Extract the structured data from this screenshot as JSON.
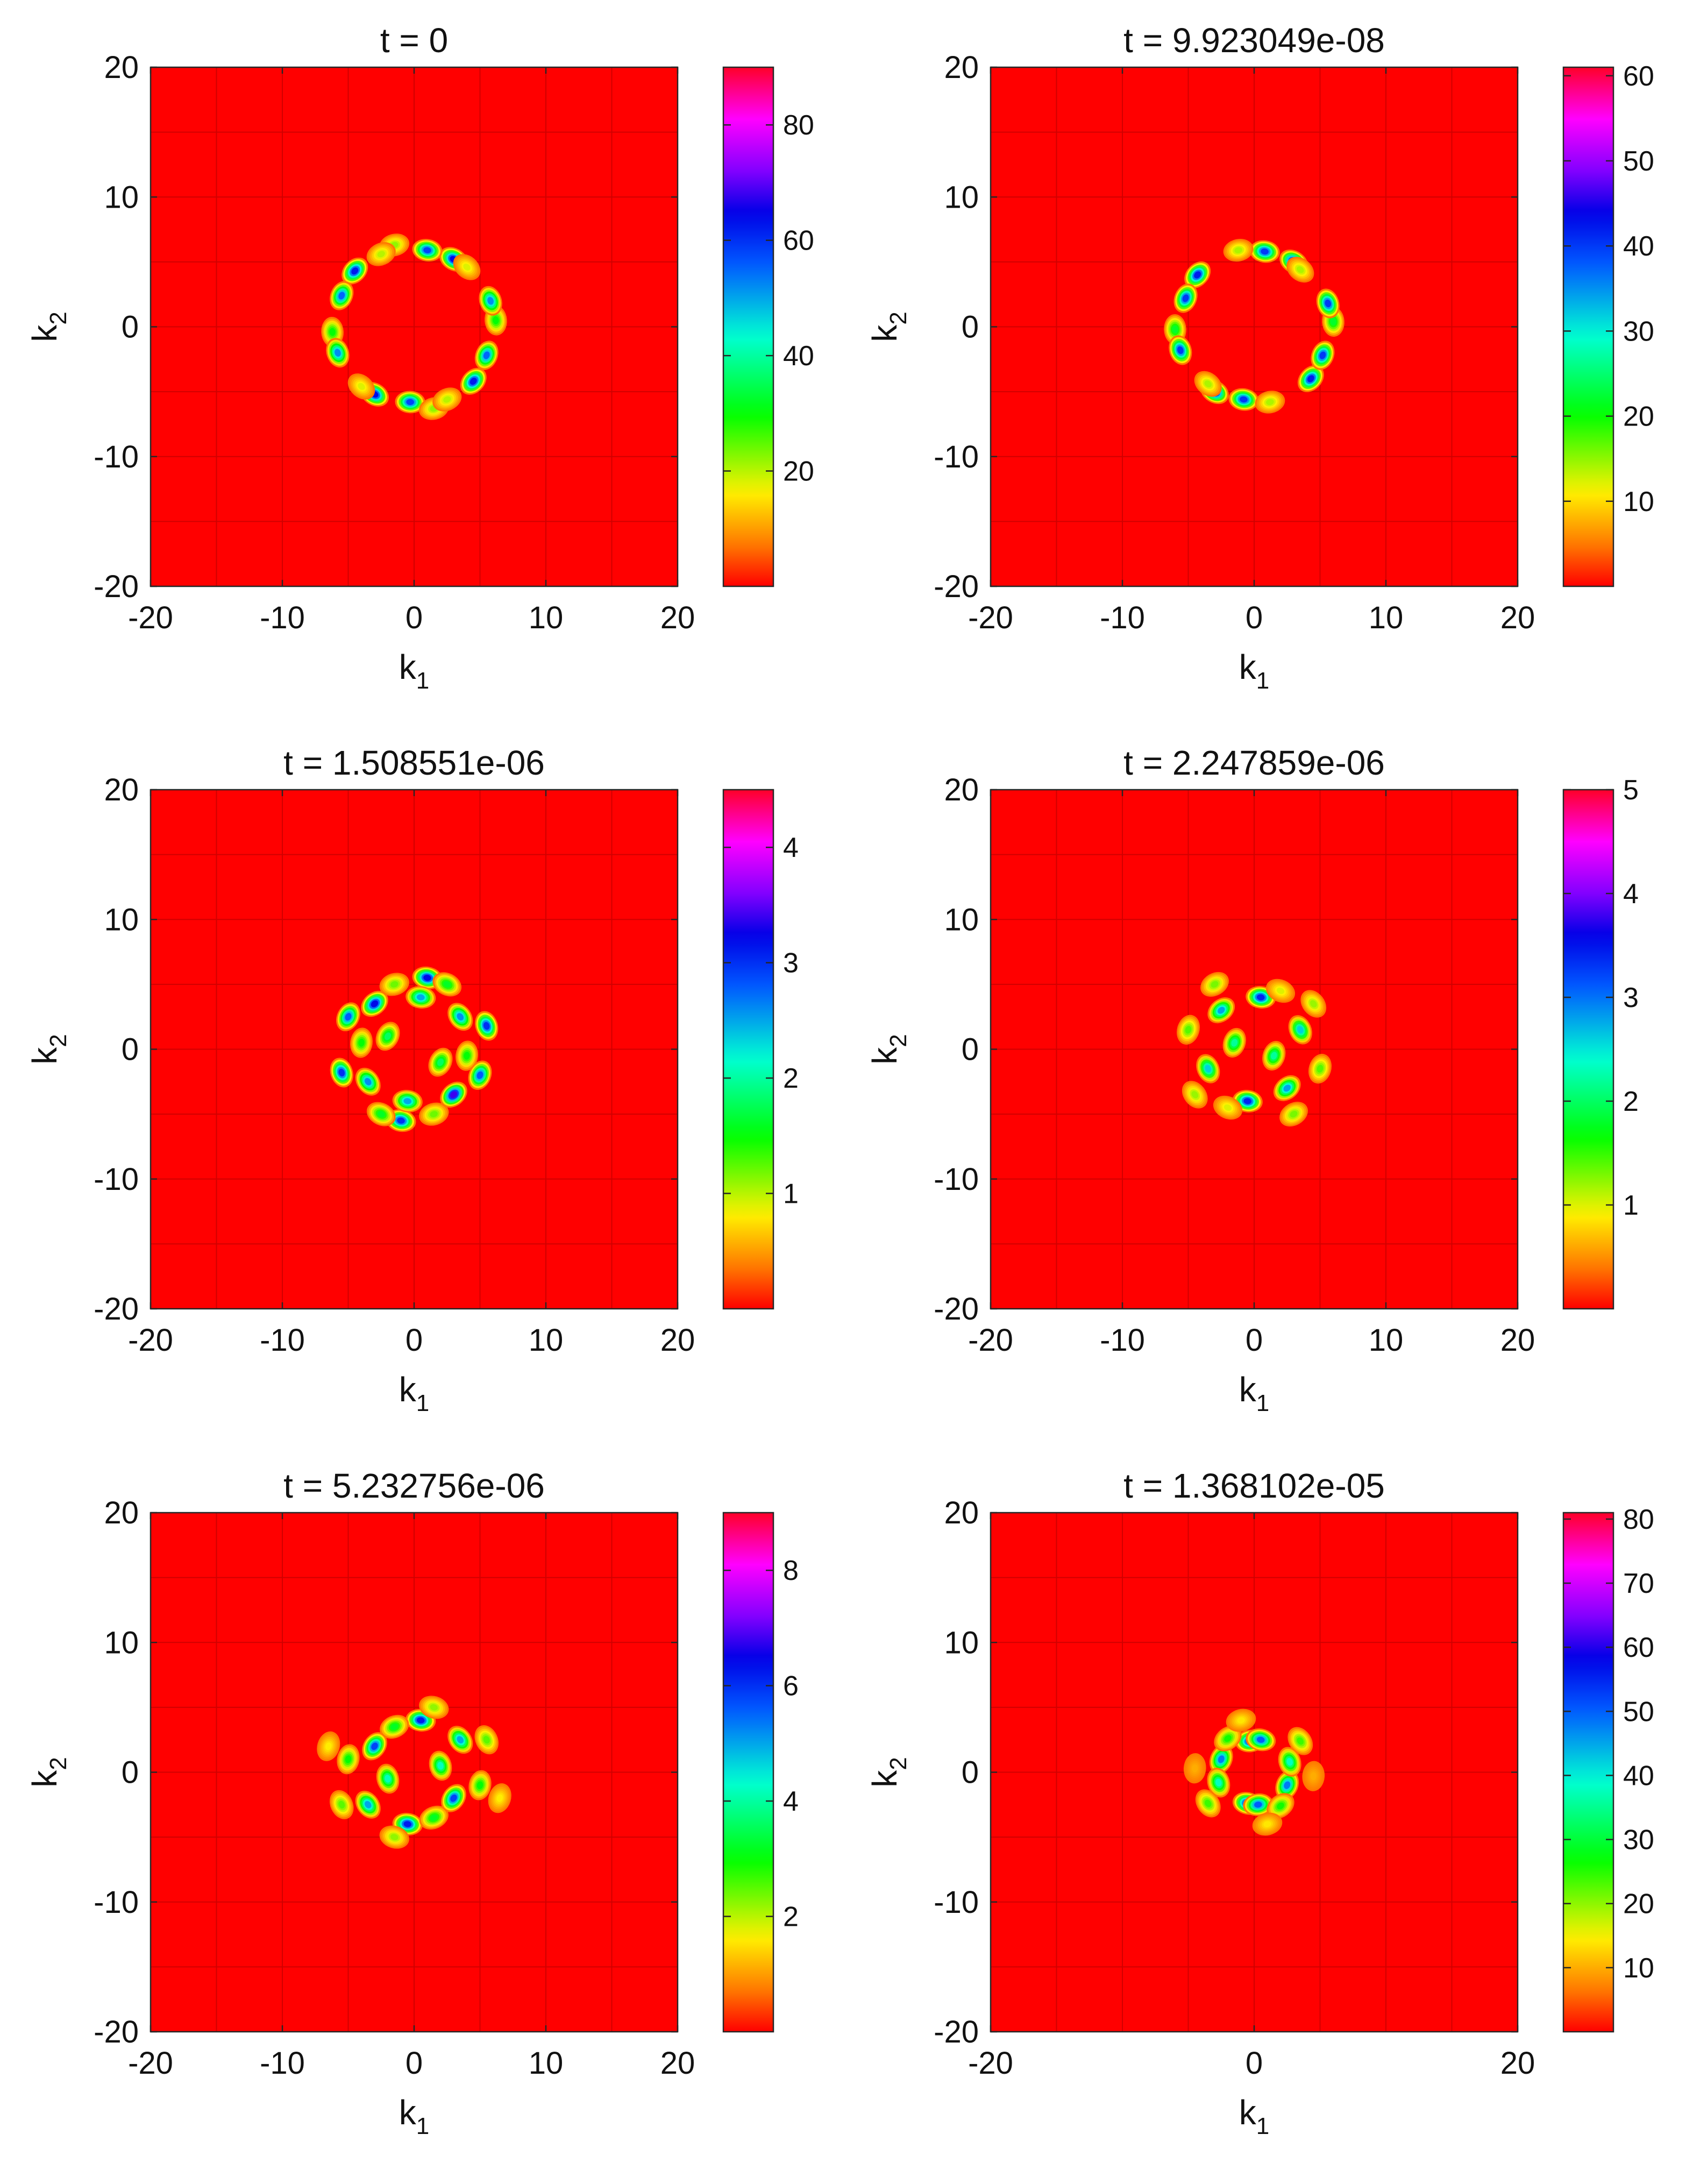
{
  "chart_data": [
    {
      "type": "heatmap",
      "title": "t = 0",
      "xlabel": "k",
      "xlabel_sub": "1",
      "ylabel": "k",
      "ylabel_sub": "2",
      "xlim": [
        -20,
        20
      ],
      "ylim": [
        -20,
        20
      ],
      "xticks": [
        -20,
        -10,
        0,
        10,
        20
      ],
      "yticks": [
        -20,
        -10,
        0,
        10,
        20
      ],
      "colorbar": {
        "range": [
          0,
          90
        ],
        "ticks": [
          20,
          40,
          60,
          80
        ]
      },
      "background_color": "#ff0000",
      "pattern": "ring",
      "pattern_radius": 6.2,
      "blobs": [
        {
          "x": -4.5,
          "y": 4.3,
          "v": 62
        },
        {
          "x": -5.5,
          "y": 2.4,
          "v": 55
        },
        {
          "x": -6.2,
          "y": -0.4,
          "v": 30
        },
        {
          "x": -5.8,
          "y": -2.0,
          "v": 52
        },
        {
          "x": -3.0,
          "y": -5.2,
          "v": 64
        },
        {
          "x": -0.3,
          "y": -5.8,
          "v": 58
        },
        {
          "x": 1.5,
          "y": -6.3,
          "v": 22
        },
        {
          "x": 4.5,
          "y": -4.2,
          "v": 62
        },
        {
          "x": 5.5,
          "y": -2.2,
          "v": 55
        },
        {
          "x": 6.2,
          "y": 0.5,
          "v": 30
        },
        {
          "x": 5.8,
          "y": 2.0,
          "v": 52
        },
        {
          "x": 3.0,
          "y": 5.2,
          "v": 64
        },
        {
          "x": 1.0,
          "y": 5.9,
          "v": 58
        },
        {
          "x": -1.5,
          "y": 6.3,
          "v": 22
        },
        {
          "x": -2.5,
          "y": 5.6,
          "v": 20
        },
        {
          "x": 2.5,
          "y": -5.6,
          "v": 20
        },
        {
          "x": -4.0,
          "y": -4.6,
          "v": 18
        },
        {
          "x": 4.0,
          "y": 4.6,
          "v": 18
        }
      ]
    },
    {
      "type": "heatmap",
      "title": "t = 9.923049e-08",
      "xlabel": "k",
      "xlabel_sub": "1",
      "ylabel": "k",
      "ylabel_sub": "2",
      "xlim": [
        -20,
        20
      ],
      "ylim": [
        -20,
        20
      ],
      "xticks": [
        -20,
        -10,
        0,
        10,
        20
      ],
      "yticks": [
        -20,
        -10,
        0,
        10,
        20
      ],
      "colorbar": {
        "range": [
          0,
          61
        ],
        "ticks": [
          10,
          20,
          30,
          40,
          50,
          60
        ]
      },
      "background_color": "#ff0000",
      "pattern": "ring",
      "pattern_radius": 6.0,
      "blobs": [
        {
          "x": -4.3,
          "y": 4.0,
          "v": 42
        },
        {
          "x": -5.2,
          "y": 2.2,
          "v": 40
        },
        {
          "x": -6.0,
          "y": -0.2,
          "v": 22
        },
        {
          "x": -5.6,
          "y": -1.8,
          "v": 40
        },
        {
          "x": -3.0,
          "y": -5.0,
          "v": 45
        },
        {
          "x": -0.8,
          "y": -5.6,
          "v": 40
        },
        {
          "x": 1.2,
          "y": -5.8,
          "v": 14
        },
        {
          "x": 4.3,
          "y": -4.0,
          "v": 42
        },
        {
          "x": 5.2,
          "y": -2.2,
          "v": 40
        },
        {
          "x": 6.0,
          "y": 0.4,
          "v": 22
        },
        {
          "x": 5.6,
          "y": 1.8,
          "v": 40
        },
        {
          "x": 3.0,
          "y": 5.0,
          "v": 45
        },
        {
          "x": 0.8,
          "y": 5.8,
          "v": 40
        },
        {
          "x": -1.2,
          "y": 5.9,
          "v": 14
        },
        {
          "x": -3.5,
          "y": -4.4,
          "v": 14
        },
        {
          "x": 3.5,
          "y": 4.4,
          "v": 14
        }
      ]
    },
    {
      "type": "heatmap",
      "title": "t = 1.508551e-06",
      "xlabel": "k",
      "xlabel_sub": "1",
      "ylabel": "k",
      "ylabel_sub": "2",
      "xlim": [
        -20,
        20
      ],
      "ylim": [
        -20,
        20
      ],
      "xticks": [
        -20,
        -10,
        0,
        10,
        20
      ],
      "yticks": [
        -20,
        -10,
        0,
        10,
        20
      ],
      "colorbar": {
        "range": [
          0,
          4.5
        ],
        "ticks": [
          1,
          2,
          3,
          4
        ]
      },
      "background_color": "#ff0000",
      "pattern": "disk",
      "pattern_radius": 6.8,
      "blobs": [
        {
          "x": -3.0,
          "y": 3.5,
          "v": 3.2
        },
        {
          "x": -5.0,
          "y": 2.5,
          "v": 2.8
        },
        {
          "x": -5.5,
          "y": -1.8,
          "v": 3.0
        },
        {
          "x": -3.5,
          "y": -2.5,
          "v": 2.6
        },
        {
          "x": -1.0,
          "y": -5.5,
          "v": 3.0
        },
        {
          "x": 3.0,
          "y": -3.5,
          "v": 3.4
        },
        {
          "x": 5.0,
          "y": -2.0,
          "v": 2.8
        },
        {
          "x": 5.5,
          "y": 1.8,
          "v": 3.0
        },
        {
          "x": 3.5,
          "y": 2.5,
          "v": 2.6
        },
        {
          "x": 1.0,
          "y": 5.5,
          "v": 3.2
        },
        {
          "x": 0.5,
          "y": 4.0,
          "v": 2.5
        },
        {
          "x": -0.5,
          "y": -4.0,
          "v": 2.5
        },
        {
          "x": -2.0,
          "y": 1.0,
          "v": 1.8
        },
        {
          "x": 2.0,
          "y": -1.0,
          "v": 1.8
        },
        {
          "x": -4.0,
          "y": 0.5,
          "v": 1.5
        },
        {
          "x": 4.0,
          "y": -0.5,
          "v": 1.5
        },
        {
          "x": -1.5,
          "y": 5.0,
          "v": 1.2
        },
        {
          "x": 1.5,
          "y": -5.0,
          "v": 1.2
        },
        {
          "x": 2.5,
          "y": 5.0,
          "v": 1.6
        },
        {
          "x": -2.5,
          "y": -5.0,
          "v": 1.6
        }
      ]
    },
    {
      "type": "heatmap",
      "title": "t = 2.247859e-06",
      "xlabel": "k",
      "xlabel_sub": "1",
      "ylabel": "k",
      "ylabel_sub": "2",
      "xlim": [
        -20,
        20
      ],
      "ylim": [
        -20,
        20
      ],
      "xticks": [
        -20,
        -10,
        0,
        10,
        20
      ],
      "yticks": [
        -20,
        -10,
        0,
        10,
        20
      ],
      "colorbar": {
        "range": [
          0,
          5
        ],
        "ticks": [
          1,
          2,
          3,
          4,
          5
        ]
      },
      "background_color": "#ff0000",
      "pattern": "disk",
      "pattern_radius": 6.8,
      "blobs": [
        {
          "x": 0.5,
          "y": 4.0,
          "v": 3.4
        },
        {
          "x": -0.5,
          "y": -4.0,
          "v": 3.4
        },
        {
          "x": -2.5,
          "y": 3.0,
          "v": 2.8
        },
        {
          "x": 2.5,
          "y": -3.0,
          "v": 2.8
        },
        {
          "x": -3.5,
          "y": -1.5,
          "v": 2.6
        },
        {
          "x": 3.5,
          "y": 1.5,
          "v": 2.6
        },
        {
          "x": -1.5,
          "y": 0.5,
          "v": 2.2
        },
        {
          "x": 1.5,
          "y": -0.5,
          "v": 2.2
        },
        {
          "x": -5.0,
          "y": 1.5,
          "v": 1.4
        },
        {
          "x": 5.0,
          "y": -1.5,
          "v": 1.4
        },
        {
          "x": -4.5,
          "y": -3.5,
          "v": 1.2
        },
        {
          "x": 4.5,
          "y": 3.5,
          "v": 1.2
        },
        {
          "x": -2.0,
          "y": -4.5,
          "v": 1.0
        },
        {
          "x": 2.0,
          "y": 4.5,
          "v": 1.0
        },
        {
          "x": 3.0,
          "y": -5.0,
          "v": 1.3
        },
        {
          "x": -3.0,
          "y": 5.0,
          "v": 1.3
        }
      ]
    },
    {
      "type": "heatmap",
      "title": "t = 5.232756e-06",
      "xlabel": "k",
      "xlabel_sub": "1",
      "ylabel": "k",
      "ylabel_sub": "2",
      "xlim": [
        -20,
        20
      ],
      "ylim": [
        -20,
        20
      ],
      "xticks": [
        -20,
        -10,
        0,
        10,
        20
      ],
      "yticks": [
        -20,
        -10,
        0,
        10,
        20
      ],
      "colorbar": {
        "range": [
          0,
          9
        ],
        "ticks": [
          2,
          4,
          6,
          8
        ]
      },
      "background_color": "#ff0000",
      "pattern": "disk",
      "pattern_radius": 7.2,
      "blobs": [
        {
          "x": 0.5,
          "y": 4.0,
          "v": 6.2
        },
        {
          "x": -0.5,
          "y": -4.0,
          "v": 6.2
        },
        {
          "x": -3.0,
          "y": 2.0,
          "v": 5.8
        },
        {
          "x": 3.0,
          "y": -2.0,
          "v": 5.8
        },
        {
          "x": -3.5,
          "y": -2.5,
          "v": 5.0
        },
        {
          "x": 3.5,
          "y": 2.5,
          "v": 5.0
        },
        {
          "x": -2.0,
          "y": -0.5,
          "v": 4.2
        },
        {
          "x": 2.0,
          "y": 0.5,
          "v": 4.2
        },
        {
          "x": -5.0,
          "y": 1.0,
          "v": 3.0
        },
        {
          "x": 5.0,
          "y": -1.0,
          "v": 3.0
        },
        {
          "x": -1.5,
          "y": 3.5,
          "v": 3.2
        },
        {
          "x": 1.5,
          "y": -3.5,
          "v": 3.2
        },
        {
          "x": 5.5,
          "y": 2.5,
          "v": 2.5
        },
        {
          "x": -5.5,
          "y": -2.5,
          "v": 2.5
        },
        {
          "x": 1.5,
          "y": 5.0,
          "v": 2.2
        },
        {
          "x": -1.5,
          "y": -5.0,
          "v": 2.2
        },
        {
          "x": -6.5,
          "y": 2.0,
          "v": 1.6
        },
        {
          "x": 6.5,
          "y": -2.0,
          "v": 1.6
        }
      ]
    },
    {
      "type": "heatmap",
      "title": "t = 1.368102e-05",
      "xlabel": "k",
      "xlabel_sub": "1",
      "ylabel": "k",
      "ylabel_sub": "2",
      "xlim": [
        -20,
        20
      ],
      "ylim": [
        -20,
        20
      ],
      "xticks": [
        -20,
        0,
        20
      ],
      "yticks": [
        -20,
        -10,
        0,
        10,
        20
      ],
      "colorbar": {
        "range": [
          0,
          81
        ],
        "ticks": [
          10,
          20,
          30,
          40,
          50,
          60,
          70,
          80
        ]
      },
      "background_color": "#ff0000",
      "pattern": "disk",
      "pattern_radius": 4.8,
      "blobs": [
        {
          "x": -0.3,
          "y": 2.4,
          "v": 55
        },
        {
          "x": 0.5,
          "y": 2.5,
          "v": 50
        },
        {
          "x": -0.5,
          "y": -2.4,
          "v": 55
        },
        {
          "x": 0.3,
          "y": -2.5,
          "v": 50
        },
        {
          "x": -2.5,
          "y": 1.0,
          "v": 48
        },
        {
          "x": 2.5,
          "y": -1.0,
          "v": 48
        },
        {
          "x": -2.7,
          "y": -0.8,
          "v": 38
        },
        {
          "x": 2.7,
          "y": 0.8,
          "v": 38
        },
        {
          "x": -2.0,
          "y": 2.6,
          "v": 26
        },
        {
          "x": 2.0,
          "y": -2.6,
          "v": 26
        },
        {
          "x": -3.5,
          "y": -2.4,
          "v": 24
        },
        {
          "x": 3.5,
          "y": 2.4,
          "v": 24
        },
        {
          "x": -1.0,
          "y": 4.0,
          "v": 14
        },
        {
          "x": 1.0,
          "y": -4.0,
          "v": 14
        },
        {
          "x": -4.5,
          "y": 0.3,
          "v": 10
        },
        {
          "x": 4.5,
          "y": -0.3,
          "v": 10
        }
      ]
    }
  ]
}
